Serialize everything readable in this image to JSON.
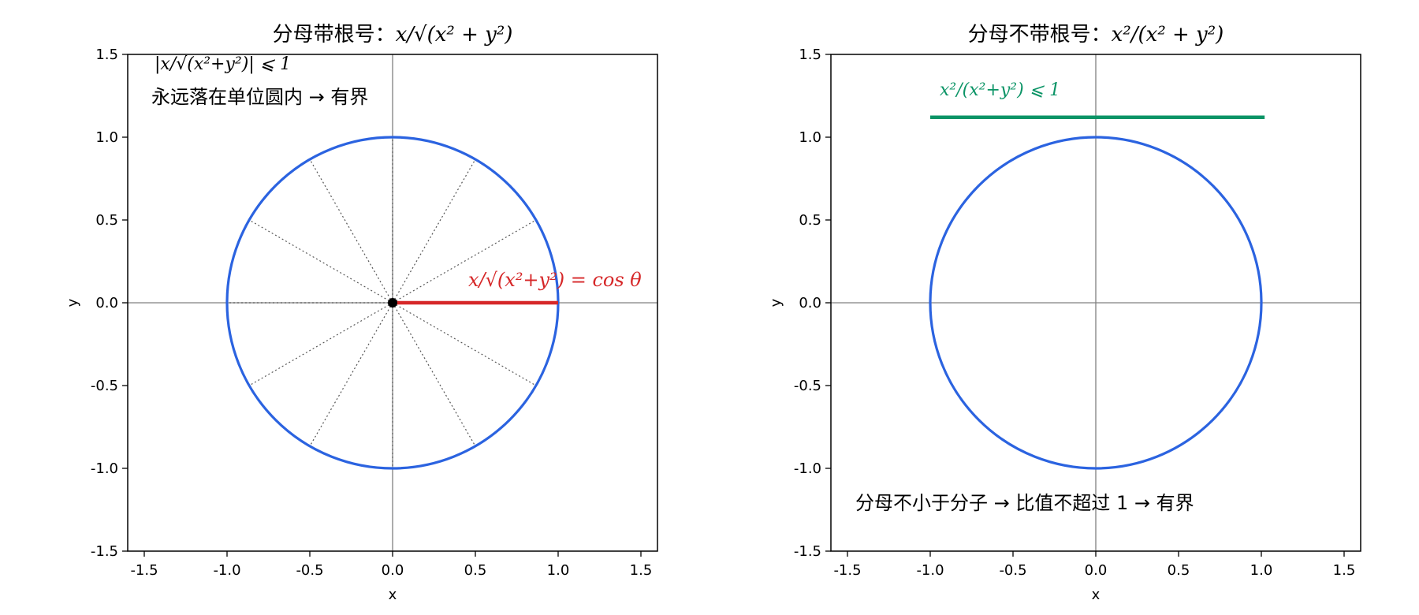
{
  "colors": {
    "circle": "#2b63e0",
    "red": "#d62728",
    "green": "#0b9466",
    "axis": "#808080",
    "spoke": "#555555"
  },
  "chart_data": [
    {
      "type": "line",
      "title_prefix": "分母带根号：",
      "title_math": "x/√(x² + y²)",
      "xlabel": "x",
      "ylabel": "y",
      "xlim": [
        -1.6,
        1.6
      ],
      "ylim": [
        -1.5,
        1.5
      ],
      "xticks": [
        "-1.5",
        "-1.0",
        "-0.5",
        "0.0",
        "0.5",
        "1.0",
        "1.5"
      ],
      "yticks": [
        "1.5",
        "1.0",
        "0.5",
        "0.0",
        "-0.5",
        "-1.0",
        "-1.5"
      ],
      "series": [
        {
          "kind": "unit-circle",
          "radius": 1
        },
        {
          "kind": "radial-spokes",
          "angles_deg": [
            0,
            30,
            60,
            90,
            120,
            150,
            180,
            210,
            240,
            270,
            300,
            330
          ]
        },
        {
          "kind": "segment",
          "x": [
            0,
            1
          ],
          "y": [
            0,
            0
          ]
        },
        {
          "kind": "point",
          "x": 0,
          "y": 0
        }
      ],
      "annotations": {
        "bound_formula": "|x/√(x²+y²)| ⩽ 1",
        "bound_text": "永远落在单位圆内 → 有界",
        "cos_formula": "x/√(x²+y²) = cos θ"
      }
    },
    {
      "type": "line",
      "title_prefix": "分母不带根号：",
      "title_math": "x²/(x² + y²)",
      "xlabel": "x",
      "ylabel": "y",
      "xlim": [
        -1.6,
        1.6
      ],
      "ylim": [
        -1.5,
        1.5
      ],
      "xticks": [
        "-1.5",
        "-1.0",
        "-0.5",
        "0.0",
        "0.5",
        "1.0",
        "1.5"
      ],
      "yticks": [
        "1.5",
        "1.0",
        "0.5",
        "0.0",
        "-0.5",
        "-1.0",
        "-1.5"
      ],
      "series": [
        {
          "kind": "unit-circle",
          "radius": 1
        },
        {
          "kind": "segment",
          "x": [
            -1.0,
            1.02
          ],
          "y": [
            1.12,
            1.12
          ]
        }
      ],
      "annotations": {
        "bound_formula": "x²/(x²+y²) ⩽ 1",
        "bound_text": "分母不小于分子 → 比值不超过 1 → 有界"
      }
    }
  ]
}
